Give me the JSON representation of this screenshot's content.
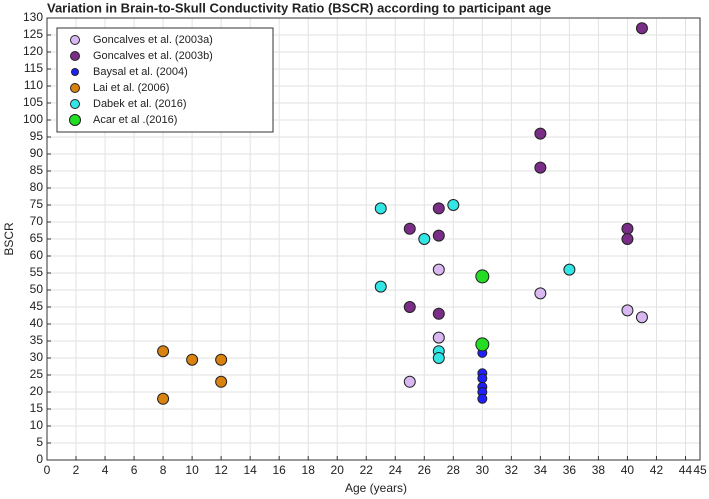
{
  "chart_data": {
    "type": "scatter",
    "title": "Variation in Brain-to-Skull Conductivity Ratio (BSCR) according to participant age",
    "xlabel": "Age (years)",
    "ylabel": "BSCR",
    "xlim": [
      0,
      45
    ],
    "ylim": [
      0,
      130
    ],
    "xticks": [
      0,
      2,
      4,
      6,
      8,
      10,
      12,
      14,
      16,
      18,
      20,
      22,
      24,
      26,
      28,
      30,
      32,
      34,
      36,
      38,
      40,
      42,
      44,
      45
    ],
    "yticks": [
      0,
      5,
      10,
      15,
      20,
      25,
      30,
      35,
      40,
      45,
      50,
      55,
      60,
      65,
      70,
      75,
      80,
      85,
      90,
      95,
      100,
      105,
      110,
      115,
      120,
      125,
      130
    ],
    "grid": true,
    "legend": "upper left",
    "series": [
      {
        "name": "Goncalves et al. (2003a)",
        "color": "#d9b8f2",
        "size": 5.5,
        "x": [
          25,
          27,
          27,
          34,
          40,
          41
        ],
        "values": [
          23,
          56,
          36,
          49,
          44,
          42
        ]
      },
      {
        "name": "Goncalves et al. (2003b)",
        "color": "#7a2d86",
        "size": 5.5,
        "x": [
          25,
          25,
          27,
          27,
          27,
          34,
          34,
          40,
          40,
          41
        ],
        "values": [
          68,
          45,
          74,
          66,
          43,
          96,
          86,
          68,
          65,
          127
        ]
      },
      {
        "name": "Baysal et al. (2004)",
        "color": "#1f1fff",
        "size": 4.5,
        "x": [
          30,
          30,
          30,
          30,
          30,
          30
        ],
        "values": [
          31.5,
          25.5,
          24,
          21.5,
          20,
          18
        ]
      },
      {
        "name": "Lai et al. (2006)",
        "color": "#d9820f",
        "size": 5.5,
        "x": [
          8,
          8,
          10,
          12,
          12
        ],
        "values": [
          32,
          18,
          29.5,
          29.5,
          23
        ]
      },
      {
        "name": "Dabek et al. (2016)",
        "color": "#33e6e6",
        "size": 5.5,
        "x": [
          23,
          23,
          26,
          28,
          27,
          27,
          36
        ],
        "values": [
          74,
          51,
          65,
          75,
          32,
          30,
          56
        ]
      },
      {
        "name": "Acar et al .(2016)",
        "color": "#22dd22",
        "size": 6.5,
        "x": [
          30,
          30
        ],
        "values": [
          54,
          34
        ]
      }
    ]
  }
}
